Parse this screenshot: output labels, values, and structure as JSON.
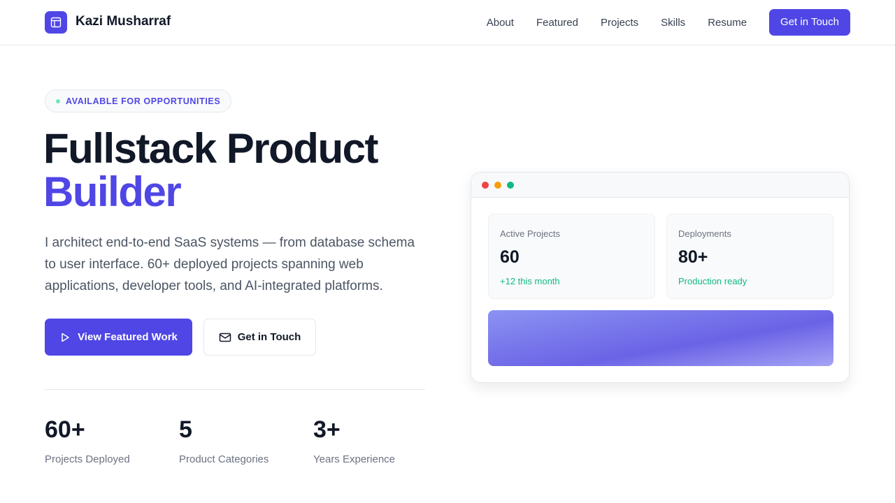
{
  "nav": {
    "brand": "Kazi Musharraf",
    "links": [
      "About",
      "Featured",
      "Projects",
      "Skills",
      "Resume"
    ],
    "cta": "Get in Touch"
  },
  "hero": {
    "badge": "AVAILABLE FOR OPPORTUNITIES",
    "title_line1": "Fullstack Product",
    "title_line2": "Builder",
    "description": "I architect end-to-end SaaS systems — from database schema to user interface. 60+ deployed projects spanning web applications, developer tools, and AI-integrated platforms.",
    "primary_button": "View Featured Work",
    "secondary_button": "Get in Touch"
  },
  "stats": [
    {
      "value": "60+",
      "label": "Projects Deployed"
    },
    {
      "value": "5",
      "label": "Product Categories"
    },
    {
      "value": "3+",
      "label": "Years Experience"
    }
  ],
  "dashboard": {
    "cards": [
      {
        "title": "Active Projects",
        "value": "60",
        "sub": "+12 this month"
      },
      {
        "title": "Deployments",
        "value": "80+",
        "sub": "Production ready"
      }
    ]
  },
  "colors": {
    "accent": "#4f46e5",
    "success": "#10b981"
  }
}
